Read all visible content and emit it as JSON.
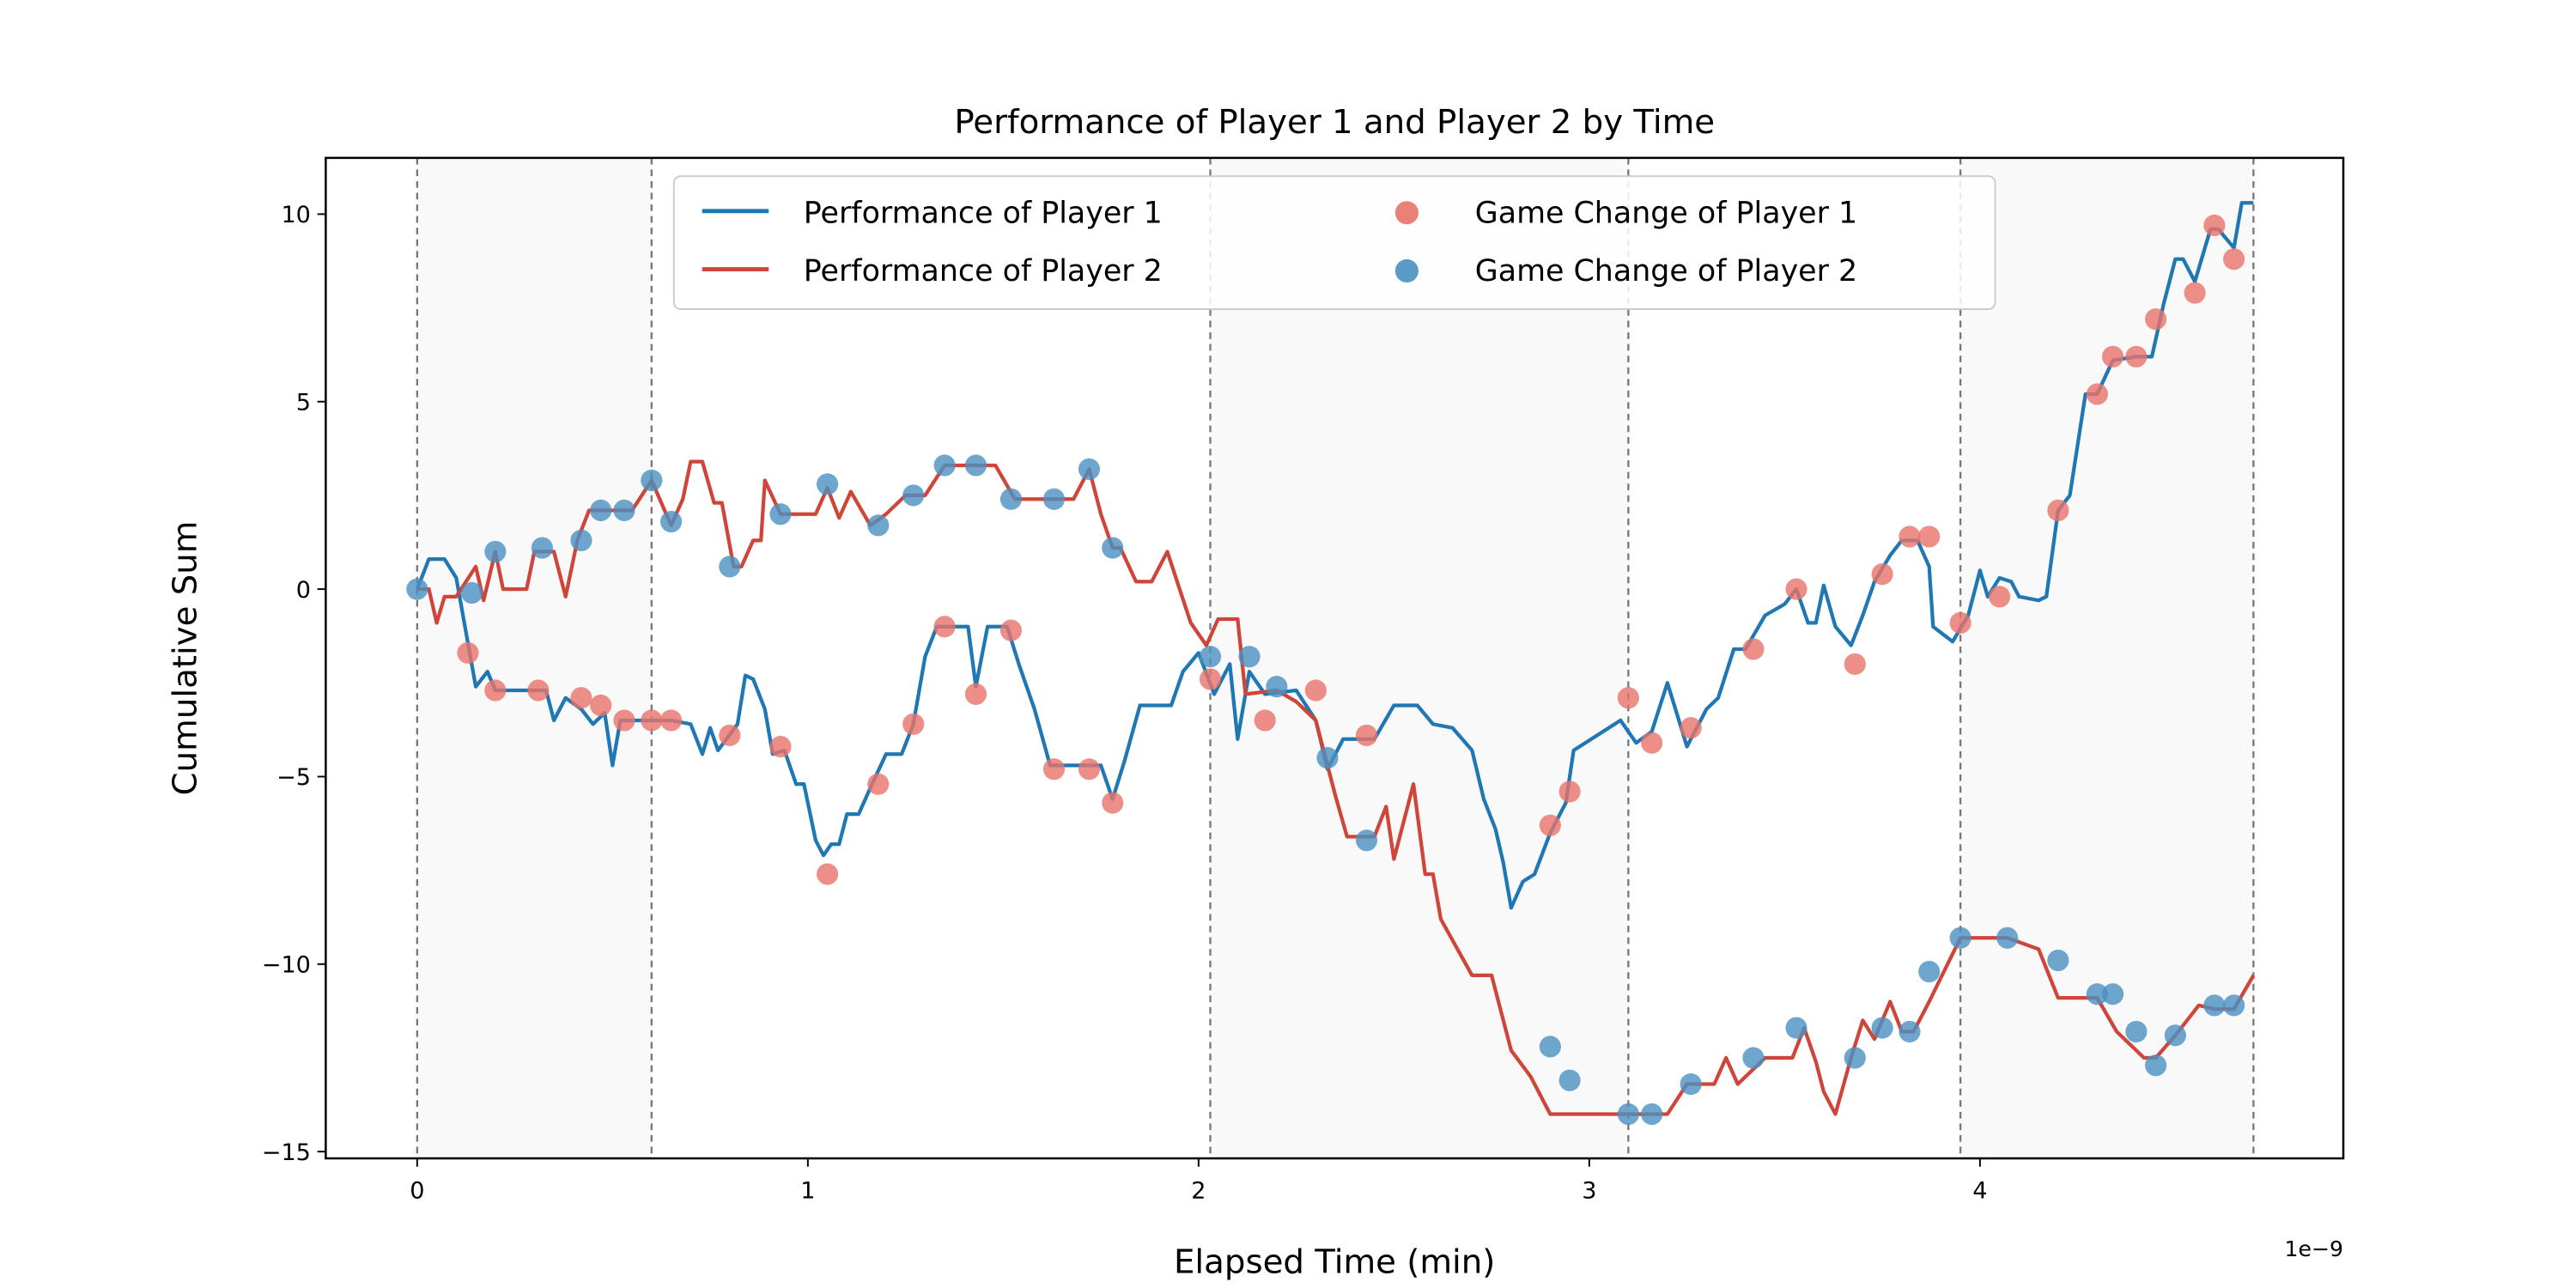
{
  "chart_data": {
    "type": "line",
    "title": "Performance of Player 1 and Player 2 by Time",
    "xlabel": "Elapsed Time (min)",
    "ylabel": "Cumulative Sum",
    "x_offset_label": "1e−9",
    "xlim": [
      -0.234,
      4.93
    ],
    "ylim": [
      -15.18,
      11.5
    ],
    "xticks": [
      0,
      1,
      2,
      3,
      4
    ],
    "yticks": [
      {
        "value": -15,
        "label": "−15"
      },
      {
        "value": -10,
        "label": "−10"
      },
      {
        "value": -5,
        "label": "−5"
      },
      0,
      5,
      10
    ],
    "game_boundaries": [
      0,
      0.6,
      2.03,
      3.1,
      3.95,
      4.7
    ],
    "legend": "upper center",
    "series": [
      {
        "name": "Performance of Player 1",
        "kind": "line",
        "color": "#1f77b4",
        "x": [
          0,
          0.03,
          0.07,
          0.1,
          0.15,
          0.18,
          0.2,
          0.33,
          0.35,
          0.38,
          0.42,
          0.45,
          0.48,
          0.5,
          0.52,
          0.65,
          0.7,
          0.73,
          0.75,
          0.77,
          0.82,
          0.84,
          0.86,
          0.89,
          0.91,
          0.94,
          0.97,
          0.99,
          1.02,
          1.04,
          1.06,
          1.08,
          1.1,
          1.13,
          1.16,
          1.2,
          1.24,
          1.27,
          1.3,
          1.33,
          1.41,
          1.43,
          1.46,
          1.51,
          1.54,
          1.58,
          1.62,
          1.75,
          1.78,
          1.81,
          1.85,
          1.93,
          1.96,
          2.0,
          2.04,
          2.08,
          2.1,
          2.13,
          2.17,
          2.25,
          2.3,
          2.33,
          2.37,
          2.45,
          2.5,
          2.56,
          2.6,
          2.65,
          2.7,
          2.73,
          2.76,
          2.78,
          2.8,
          2.83,
          2.86,
          2.9,
          2.94,
          2.96,
          3.08,
          3.12,
          3.16,
          3.2,
          3.25,
          3.3,
          3.33,
          3.37,
          3.4,
          3.45,
          3.5,
          3.53,
          3.56,
          3.58,
          3.6,
          3.63,
          3.67,
          3.7,
          3.73,
          3.77,
          3.8,
          3.84,
          3.87,
          3.88,
          3.93,
          3.97,
          4.0,
          4.02,
          4.05,
          4.08,
          4.1,
          4.15,
          4.17,
          4.2,
          4.23,
          4.27,
          4.3,
          4.34,
          4.4,
          4.44,
          4.47,
          4.5,
          4.52,
          4.55,
          4.59,
          4.61,
          4.65,
          4.67,
          4.7
        ],
        "values": [
          0,
          0.8,
          0.8,
          0.3,
          -2.6,
          -2.2,
          -2.7,
          -2.7,
          -3.5,
          -2.9,
          -3.2,
          -3.6,
          -3.3,
          -4.7,
          -3.5,
          -3.5,
          -3.6,
          -4.4,
          -3.7,
          -4.3,
          -3.6,
          -2.3,
          -2.4,
          -3.2,
          -4.4,
          -4.3,
          -5.2,
          -5.2,
          -6.7,
          -7.1,
          -6.8,
          -6.8,
          -6.0,
          -6.0,
          -5.3,
          -4.4,
          -4.4,
          -3.6,
          -1.8,
          -1.0,
          -1.0,
          -2.6,
          -1.0,
          -1.0,
          -2.0,
          -3.2,
          -4.7,
          -4.7,
          -5.6,
          -4.6,
          -3.1,
          -3.1,
          -2.2,
          -1.7,
          -2.8,
          -2.0,
          -4.0,
          -2.2,
          -2.8,
          -2.7,
          -3.5,
          -4.8,
          -4.0,
          -4.0,
          -3.1,
          -3.1,
          -3.6,
          -3.7,
          -4.3,
          -5.6,
          -6.4,
          -7.3,
          -8.5,
          -7.8,
          -7.6,
          -6.5,
          -5.7,
          -4.3,
          -3.5,
          -4.1,
          -3.8,
          -2.5,
          -4.2,
          -3.2,
          -2.9,
          -1.6,
          -1.6,
          -0.7,
          -0.4,
          0,
          -0.9,
          -0.9,
          0.1,
          -1.0,
          -1.5,
          -0.7,
          0.2,
          0.9,
          1.3,
          1.3,
          0.6,
          -1.0,
          -1.4,
          -0.7,
          0.5,
          -0.2,
          0.3,
          0.2,
          -0.2,
          -0.3,
          -0.2,
          2.1,
          2.5,
          5.2,
          5.2,
          6.1,
          6.2,
          6.2,
          7.6,
          8.8,
          8.8,
          8.2,
          9.6,
          9.6,
          9.1,
          10.3,
          10.3
        ]
      },
      {
        "name": "Performance of Player 2",
        "kind": "line",
        "color": "#d0453a",
        "x": [
          0,
          0.03,
          0.05,
          0.07,
          0.1,
          0.15,
          0.17,
          0.2,
          0.22,
          0.28,
          0.3,
          0.35,
          0.38,
          0.41,
          0.44,
          0.55,
          0.6,
          0.65,
          0.68,
          0.7,
          0.73,
          0.76,
          0.78,
          0.81,
          0.83,
          0.86,
          0.88,
          0.89,
          0.93,
          1.02,
          1.05,
          1.08,
          1.11,
          1.16,
          1.2,
          1.25,
          1.3,
          1.35,
          1.48,
          1.53,
          1.68,
          1.72,
          1.75,
          1.78,
          1.8,
          1.84,
          1.88,
          1.92,
          1.98,
          2.02,
          2.05,
          2.1,
          2.12,
          2.2,
          2.25,
          2.3,
          2.35,
          2.38,
          2.45,
          2.48,
          2.5,
          2.55,
          2.58,
          2.6,
          2.62,
          2.7,
          2.75,
          2.8,
          2.85,
          2.9,
          3.2,
          3.25,
          3.32,
          3.35,
          3.38,
          3.45,
          3.52,
          3.55,
          3.58,
          3.6,
          3.63,
          3.67,
          3.7,
          3.73,
          3.77,
          3.8,
          3.83,
          3.87,
          3.95,
          4.07,
          4.15,
          4.2,
          4.3,
          4.35,
          4.42,
          4.45,
          4.5,
          4.56,
          4.6,
          4.65,
          4.7
        ],
        "values": [
          0,
          0,
          -0.9,
          -0.2,
          -0.2,
          0.6,
          -0.3,
          1.0,
          0,
          0,
          1.0,
          1.0,
          -0.2,
          1.3,
          2.1,
          2.1,
          2.9,
          1.7,
          2.4,
          3.4,
          3.4,
          2.3,
          2.3,
          0.6,
          0.6,
          1.3,
          1.3,
          2.9,
          2.0,
          2.0,
          2.7,
          1.9,
          2.6,
          1.7,
          2.0,
          2.5,
          2.5,
          3.3,
          3.3,
          2.4,
          2.4,
          3.2,
          2.0,
          1.1,
          1.1,
          0.2,
          0.2,
          1.0,
          -0.9,
          -1.5,
          -0.8,
          -0.8,
          -2.8,
          -2.7,
          -3.0,
          -3.5,
          -5.5,
          -6.6,
          -6.6,
          -5.8,
          -7.2,
          -5.2,
          -7.6,
          -7.6,
          -8.8,
          -10.3,
          -10.3,
          -12.3,
          -13.0,
          -14.0,
          -14.0,
          -13.2,
          -13.2,
          -12.5,
          -13.2,
          -12.5,
          -12.5,
          -11.7,
          -12.6,
          -13.4,
          -14.0,
          -12.5,
          -11.5,
          -12.0,
          -11.0,
          -11.8,
          -11.8,
          -11.0,
          -9.3,
          -9.3,
          -9.6,
          -10.9,
          -10.9,
          -11.8,
          -12.5,
          -12.5,
          -11.9,
          -11.1,
          -11.2,
          -11.2,
          -10.3
        ]
      },
      {
        "name": "Game Change of Player 1",
        "kind": "scatter",
        "color": "#e8736a",
        "x": [
          0.13,
          0.2,
          0.31,
          0.42,
          0.47,
          0.53,
          0.6,
          0.65,
          0.8,
          0.93,
          1.05,
          1.18,
          1.27,
          1.35,
          1.43,
          1.52,
          1.63,
          1.72,
          1.78,
          2.03,
          2.17,
          2.3,
          2.43,
          2.9,
          2.95,
          3.1,
          3.16,
          3.26,
          3.42,
          3.53,
          3.68,
          3.75,
          3.82,
          3.87,
          3.95,
          4.05,
          4.2,
          4.3,
          4.34,
          4.4,
          4.45,
          4.55,
          4.6,
          4.65
        ],
        "values": [
          -1.7,
          -2.7,
          -2.7,
          -2.9,
          -3.1,
          -3.5,
          -3.5,
          -3.5,
          -3.9,
          -4.2,
          -7.6,
          -5.2,
          -3.6,
          -1.0,
          -2.8,
          -1.1,
          -4.8,
          -4.8,
          -5.7,
          -2.4,
          -3.5,
          -2.7,
          -3.9,
          -6.3,
          -5.4,
          -2.9,
          -4.1,
          -3.7,
          -1.6,
          0,
          -2.0,
          0.4,
          1.4,
          1.4,
          -0.9,
          -0.2,
          2.1,
          5.2,
          6.2,
          6.2,
          7.2,
          7.9,
          9.7,
          8.8
        ]
      },
      {
        "name": "Game Change of Player 2",
        "kind": "scatter",
        "color": "#4a90c2",
        "x": [
          0,
          0.14,
          0.2,
          0.32,
          0.42,
          0.47,
          0.53,
          0.6,
          0.65,
          0.8,
          0.93,
          1.05,
          1.18,
          1.27,
          1.35,
          1.43,
          1.52,
          1.63,
          1.72,
          1.78,
          2.03,
          2.13,
          2.2,
          2.33,
          2.43,
          2.9,
          2.95,
          3.1,
          3.16,
          3.26,
          3.42,
          3.53,
          3.68,
          3.75,
          3.82,
          3.87,
          3.95,
          4.07,
          4.2,
          4.3,
          4.34,
          4.4,
          4.45,
          4.5,
          4.6,
          4.65
        ],
        "values": [
          0,
          -0.1,
          1.0,
          1.1,
          1.3,
          2.1,
          2.1,
          2.9,
          1.8,
          0.6,
          2.0,
          2.8,
          1.7,
          2.5,
          3.3,
          3.3,
          2.4,
          2.4,
          3.2,
          1.1,
          -1.8,
          -1.8,
          -2.6,
          -4.5,
          -6.7,
          -12.2,
          -13.1,
          -14.0,
          -14.0,
          -13.2,
          -12.5,
          -11.7,
          -12.5,
          -11.7,
          -11.8,
          -10.2,
          -9.3,
          -9.3,
          -9.9,
          -10.8,
          -10.8,
          -11.8,
          -12.7,
          -11.9,
          -11.1,
          -11.1
        ]
      }
    ]
  }
}
